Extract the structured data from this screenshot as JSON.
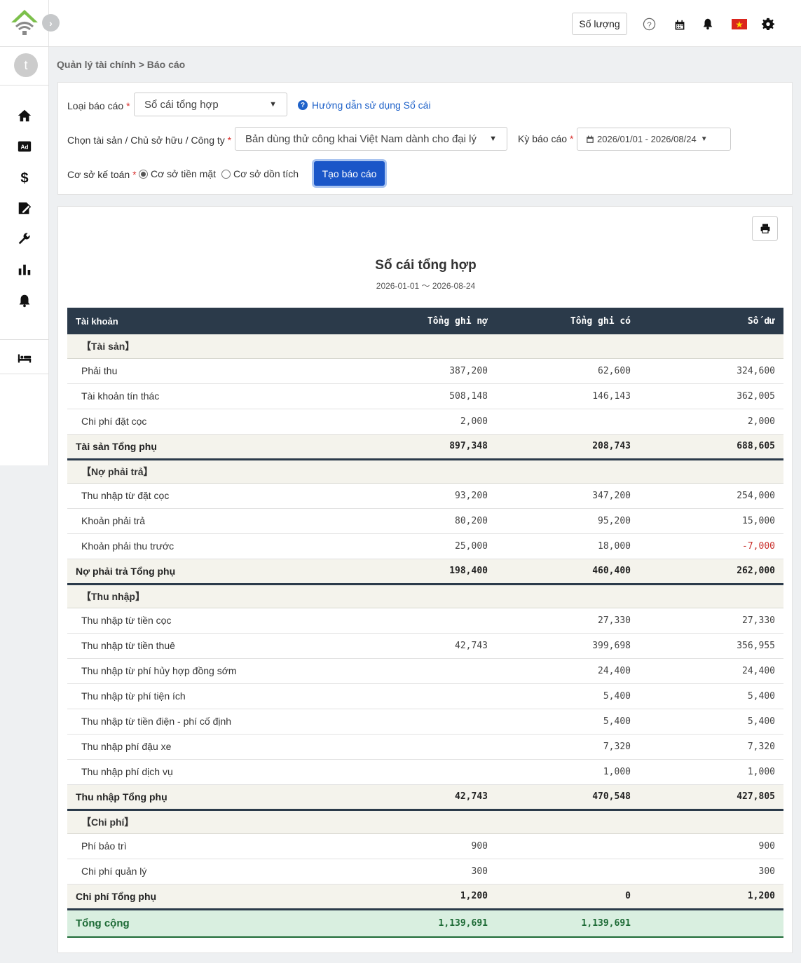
{
  "header": {
    "qty_label": "Số lượng"
  },
  "breadcrumb": {
    "parent": "Quản lý tài chính",
    "separator": ">",
    "current": "Báo cáo"
  },
  "sidebar": {
    "avatar_letter": "t",
    "items": [
      "home-icon",
      "ad-icon",
      "dollar-icon",
      "edit-doc-icon",
      "wrench-icon",
      "bar-chart-icon",
      "bell-icon",
      "bed-icon"
    ]
  },
  "filters": {
    "report_type_label": "Loại báo cáo",
    "report_type_value": "Sổ cái tổng hợp",
    "help_link": "Hướng dẫn sử dụng Sổ cái",
    "asset_label": "Chọn tài sản / Chủ sở hữu / Công ty",
    "asset_value": "Bản dùng thử công khai Việt Nam dành cho đại lý",
    "period_label": "Kỳ báo cáo",
    "period_value": "2026/01/01 - 2026/08/24",
    "basis_label": "Cơ sở kế toán",
    "basis_cash": "Cơ sở tiền mặt",
    "basis_accrual": "Cơ sở dồn tích",
    "generate_button": "Tạo báo cáo",
    "required_mark": "*"
  },
  "report": {
    "title": "Sổ cái tổng hợp",
    "period": "2026-01-01 〜 2026-08-24",
    "columns": [
      "Tài khoản",
      "Tổng ghi nợ",
      "Tổng ghi có",
      "Số dư"
    ],
    "sections": [
      {
        "category": "【Tài sản】",
        "rows": [
          {
            "name": "Phải thu",
            "debit": "387,200",
            "credit": "62,600",
            "balance": "324,600"
          },
          {
            "name": "Tài khoản tín thác",
            "debit": "508,148",
            "credit": "146,143",
            "balance": "362,005"
          },
          {
            "name": "Chi phí đặt cọc",
            "debit": "2,000",
            "credit": "",
            "balance": "2,000"
          }
        ],
        "subtotal": {
          "name": "Tài sản Tổng phụ",
          "debit": "897,348",
          "credit": "208,743",
          "balance": "688,605"
        }
      },
      {
        "category": "【Nợ phải trả】",
        "rows": [
          {
            "name": "Thu nhập từ đặt cọc",
            "debit": "93,200",
            "credit": "347,200",
            "balance": "254,000"
          },
          {
            "name": "Khoản phải trả",
            "debit": "80,200",
            "credit": "95,200",
            "balance": "15,000"
          },
          {
            "name": "Khoản phải thu trước",
            "debit": "25,000",
            "credit": "18,000",
            "balance": "-7,000"
          }
        ],
        "subtotal": {
          "name": "Nợ phải trả Tổng phụ",
          "debit": "198,400",
          "credit": "460,400",
          "balance": "262,000"
        }
      },
      {
        "category": "【Thu nhập】",
        "rows": [
          {
            "name": "Thu nhập từ tiền cọc",
            "debit": "",
            "credit": "27,330",
            "balance": "27,330"
          },
          {
            "name": "Thu nhập từ tiền thuê",
            "debit": "42,743",
            "credit": "399,698",
            "balance": "356,955"
          },
          {
            "name": "Thu nhập từ phí hủy hợp đồng sớm",
            "debit": "",
            "credit": "24,400",
            "balance": "24,400"
          },
          {
            "name": "Thu nhập từ phí tiện ích",
            "debit": "",
            "credit": "5,400",
            "balance": "5,400"
          },
          {
            "name": "Thu nhập từ tiền điện - phí cố định",
            "debit": "",
            "credit": "5,400",
            "balance": "5,400"
          },
          {
            "name": "Thu nhập phí đậu xe",
            "debit": "",
            "credit": "7,320",
            "balance": "7,320"
          },
          {
            "name": "Thu nhập phí dịch vụ",
            "debit": "",
            "credit": "1,000",
            "balance": "1,000"
          }
        ],
        "subtotal": {
          "name": "Thu nhập Tổng phụ",
          "debit": "42,743",
          "credit": "470,548",
          "balance": "427,805"
        }
      },
      {
        "category": "【Chi phí】",
        "rows": [
          {
            "name": "Phí bảo trì",
            "debit": "900",
            "credit": "",
            "balance": "900"
          },
          {
            "name": "Chi phí quản lý",
            "debit": "300",
            "credit": "",
            "balance": "300"
          }
        ],
        "subtotal": {
          "name": "Chi phí Tổng phụ",
          "debit": "1,200",
          "credit": "0",
          "balance": "1,200"
        }
      }
    ],
    "total": {
      "name": "Tổng cộng",
      "debit": "1,139,691",
      "credit": "1,139,691",
      "balance": ""
    }
  },
  "colors": {
    "primary": "#1a56c8",
    "table_header": "#2b3a4a",
    "negative": "#c9302c",
    "total_bg": "#d9efe0",
    "total_text": "#1d6a35"
  }
}
